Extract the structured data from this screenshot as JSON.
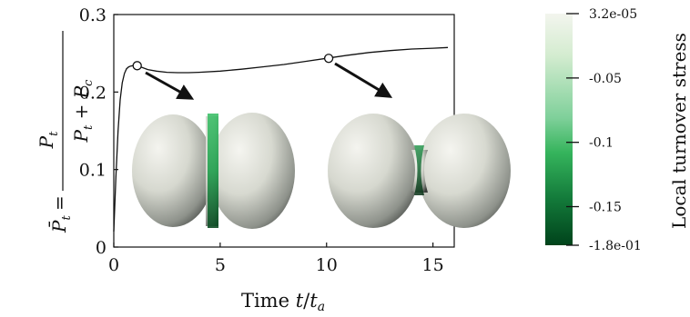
{
  "chart_data": {
    "type": "line",
    "xlabel": "Time t/t_a",
    "ylabel": "P̄_t = P_t / (P_t + P_c)",
    "xlim": [
      0,
      16
    ],
    "ylim": [
      0,
      0.3
    ],
    "x_ticks": [
      "0",
      "5",
      "10",
      "15"
    ],
    "y_ticks": [
      "0",
      "0.1",
      "0.2",
      "0.3"
    ],
    "grid": false,
    "series": [
      {
        "x": [
          0.0,
          0.1,
          0.2,
          0.3,
          0.4,
          0.5,
          0.6,
          0.7,
          0.8,
          0.9,
          1.0,
          1.1,
          1.3,
          1.6,
          2.0,
          2.5,
          3.0,
          3.5,
          4.0,
          5.0,
          6.0,
          7.0,
          8.0,
          9.0,
          10.0,
          11.0,
          12.0,
          13.0,
          14.0,
          15.0,
          15.7
        ],
        "y": [
          0.02,
          0.09,
          0.15,
          0.19,
          0.212,
          0.224,
          0.23,
          0.2325,
          0.2335,
          0.234,
          0.234,
          0.234,
          0.232,
          0.229,
          0.227,
          0.2255,
          0.225,
          0.225,
          0.2255,
          0.227,
          0.2295,
          0.2325,
          0.2355,
          0.2395,
          0.2435,
          0.2475,
          0.251,
          0.2535,
          0.2555,
          0.2565,
          0.2575
        ]
      }
    ],
    "markers": [
      {
        "x": 1.1,
        "y": 0.234
      },
      {
        "x": 10.1,
        "y": 0.2435
      }
    ],
    "colorbar": {
      "label": "Local turnover stress",
      "ticks": [
        "3.2e-05",
        "-0.05",
        "-0.1",
        "-0.15",
        "-1.8e-01"
      ],
      "values": [
        3.2e-05,
        -0.05,
        -0.1,
        -0.15,
        -0.18
      ],
      "colors": {
        "high": "#f3f5ee",
        "mid": "#35b45c",
        "low": "#00431b"
      }
    },
    "insets": [
      {
        "name": "early-cell-shape",
        "neck": "wide"
      },
      {
        "name": "late-cell-shape",
        "neck": "narrow"
      }
    ]
  }
}
